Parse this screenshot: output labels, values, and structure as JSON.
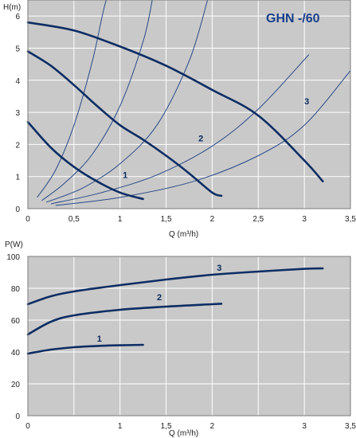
{
  "chart_data": [
    {
      "type": "line",
      "title": "GHN -/60",
      "xlabel": "Q (m³/h)",
      "ylabel": "H(m)",
      "xlim": [
        0,
        3.5
      ],
      "ylim": [
        0,
        6.5
      ],
      "x_ticks": [
        "0",
        "0,5",
        "1",
        "1,5",
        "2",
        "2,5",
        "3",
        "3,5"
      ],
      "x_tick_values": [
        0,
        0.5,
        1,
        1.5,
        2,
        2.5,
        3,
        3.5
      ],
      "y_ticks": [
        "0",
        "1",
        "2",
        "3",
        "4",
        "5",
        "6"
      ],
      "y_tick_values": [
        0,
        1,
        2,
        3,
        4,
        5,
        6
      ],
      "grid": true,
      "series": [
        {
          "name": "1",
          "x": [
            0,
            0.25,
            0.5,
            0.75,
            1.0,
            1.25
          ],
          "y": [
            2.7,
            1.9,
            1.3,
            0.85,
            0.5,
            0.3
          ],
          "label_at": [
            1.03,
            0.95
          ]
        },
        {
          "name": "2",
          "x": [
            0,
            0.25,
            0.5,
            0.75,
            1.0,
            1.25,
            1.5,
            1.75,
            2.0,
            2.1
          ],
          "y": [
            4.9,
            4.45,
            3.85,
            3.2,
            2.6,
            2.15,
            1.65,
            1.1,
            0.5,
            0.4
          ],
          "label_at": [
            1.85,
            2.1
          ]
        },
        {
          "name": "3",
          "x": [
            0,
            0.5,
            1.0,
            1.5,
            2.0,
            2.5,
            3.0,
            3.2
          ],
          "y": [
            5.8,
            5.55,
            5.05,
            4.45,
            3.7,
            2.9,
            1.5,
            0.85
          ],
          "label_at": [
            3.0,
            3.25
          ]
        }
      ],
      "system_curves": [
        {
          "x": [
            0.1,
            0.3,
            0.5,
            0.7,
            0.85,
            0.95
          ],
          "y": [
            0.35,
            1.2,
            2.6,
            4.6,
            6.5,
            6.8
          ]
        },
        {
          "x": [
            0.15,
            0.4,
            0.7,
            1.0,
            1.25,
            1.35
          ],
          "y": [
            0.25,
            0.8,
            1.7,
            3.2,
            5.2,
            6.5
          ]
        },
        {
          "x": [
            0.2,
            0.6,
            1.0,
            1.4,
            1.75,
            1.95
          ],
          "y": [
            0.2,
            0.65,
            1.4,
            2.6,
            4.6,
            6.5
          ]
        },
        {
          "x": [
            0.25,
            0.8,
            1.4,
            2.0,
            2.5,
            3.05
          ],
          "y": [
            0.15,
            0.5,
            1.05,
            1.95,
            3.1,
            4.8
          ]
        },
        {
          "x": [
            0.3,
            1.0,
            1.8,
            2.5,
            3.0,
            3.5
          ],
          "y": [
            0.1,
            0.35,
            0.85,
            1.65,
            2.6,
            4.3
          ]
        }
      ]
    },
    {
      "type": "line",
      "xlabel": "Q (m³/h)",
      "ylabel": "P(W)",
      "xlim": [
        0,
        3.5
      ],
      "ylim": [
        0,
        100
      ],
      "x_ticks": [
        "0",
        "1",
        "1,5",
        "2",
        "3",
        "3,5"
      ],
      "x_tick_values": [
        0,
        1,
        1.5,
        2,
        3,
        3.5
      ],
      "y_ticks": [
        "0",
        "20",
        "40",
        "60",
        "80",
        "100"
      ],
      "y_tick_values": [
        0,
        20,
        40,
        60,
        80,
        100
      ],
      "grid": true,
      "series": [
        {
          "name": "1",
          "x": [
            0,
            0.25,
            0.5,
            0.75,
            1.0,
            1.25
          ],
          "y": [
            39,
            41.5,
            43,
            43.8,
            44.2,
            44.5
          ],
          "label_at": [
            0.75,
            46.5
          ]
        },
        {
          "name": "2",
          "x": [
            0,
            0.25,
            0.5,
            1.0,
            1.5,
            2.0,
            2.1
          ],
          "y": [
            51,
            59,
            63,
            66.5,
            68.5,
            70,
            70.3
          ],
          "label_at": [
            1.4,
            72.5
          ]
        },
        {
          "name": "3",
          "x": [
            0,
            0.25,
            0.5,
            1.0,
            1.5,
            2.0,
            2.5,
            3.0,
            3.2
          ],
          "y": [
            70,
            75,
            78,
            82,
            85.5,
            88.5,
            90.5,
            92.2,
            92.5
          ],
          "label_at": [
            2.05,
            91
          ]
        }
      ]
    }
  ]
}
